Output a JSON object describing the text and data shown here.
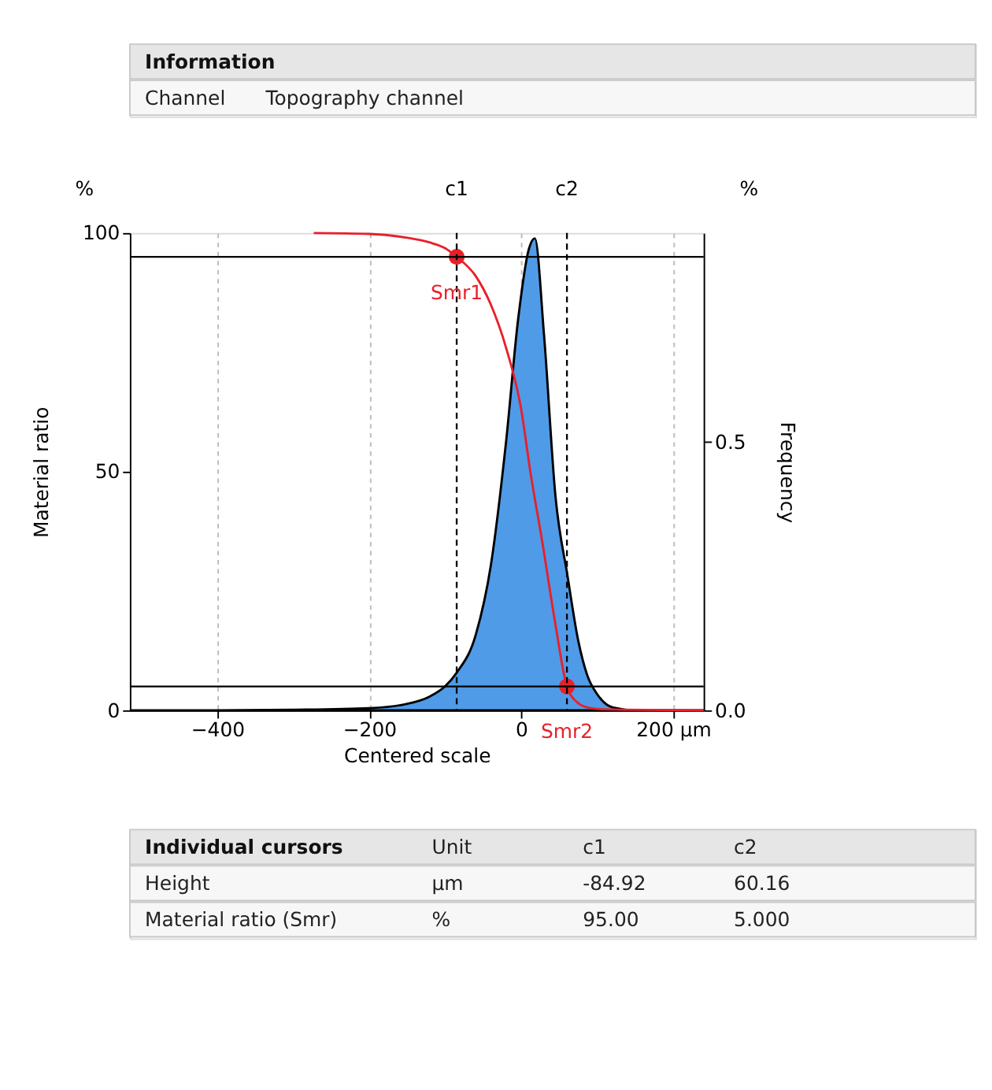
{
  "chart_data": [
    {
      "type": "other",
      "annotations": [
        "Information",
        "Channel",
        "Topography channel"
      ]
    },
    {
      "type": "line",
      "xlabel": "Centered scale",
      "ylabel": "Material ratio",
      "y2label": "Frequency",
      "xlim": [
        -515,
        240
      ],
      "xticks": [
        -400,
        -200,
        0,
        {
          "value": 200,
          "label": "200 µm"
        }
      ],
      "ylim": [
        0,
        100
      ],
      "yticks": [
        0,
        50,
        100
      ],
      "y2lim": [
        0,
        0.89
      ],
      "y2ticks": [
        {
          "value": 0,
          "label": "0.0"
        },
        0.5
      ],
      "grid": "x",
      "series": [
        {
          "type": "area",
          "axis": "y2",
          "color": "#4f9be8",
          "x": [
            -515,
            -400,
            -300,
            -200,
            -150,
            -120,
            -100,
            -85,
            -60,
            -40,
            -20,
            -4,
            10,
            18,
            30,
            45,
            61,
            75,
            87,
            100,
            121,
            150,
            240
          ],
          "values": [
            0,
            0,
            0.001,
            0.004,
            0.012,
            0.026,
            0.045,
            0.07,
            0.14,
            0.27,
            0.5,
            0.73,
            0.86,
            0.88,
            0.7,
            0.4,
            0.25,
            0.13,
            0.065,
            0.03,
            0.005,
            0,
            0
          ]
        },
        {
          "type": "line",
          "color": "#e8202a",
          "x": [
            -273,
            -200,
            -150,
            -120,
            -100,
            -84.92,
            -60,
            -40,
            -20,
            0,
            12,
            28,
            45,
            60.16,
            75,
            90,
            110,
            240
          ],
          "values": [
            100,
            99.8,
            99,
            98,
            96.8,
            95,
            91,
            85,
            76,
            63,
            50,
            35,
            18,
            5,
            1.5,
            0.5,
            0.2,
            0
          ]
        },
        {
          "type": "scatter",
          "color": "#e8202a",
          "marker": "circle",
          "x": [
            -84.92,
            60.16
          ],
          "values": [
            95,
            5
          ]
        }
      ],
      "ref_lines": [
        {
          "axis": "y",
          "value": 95,
          "color": "#000000",
          "line_style": "solid"
        },
        {
          "axis": "y",
          "value": 5,
          "color": "#000000",
          "line_style": "solid"
        },
        {
          "axis": "x",
          "value": -84.92,
          "label": "c1",
          "color": "#000000",
          "line_style": "dashed"
        },
        {
          "axis": "x",
          "value": 60.16,
          "label": "c2",
          "color": "#000000",
          "line_style": "dashed"
        }
      ],
      "annotations": [
        "%",
        "%",
        {
          "text": "Smr1",
          "x": -84.92,
          "y": 95
        },
        {
          "text": "Smr2",
          "x": 60.16,
          "y": 5
        }
      ]
    },
    {
      "type": "other",
      "annotations": [
        "Individual cursors",
        "Unit",
        "c1",
        "c2",
        "Height",
        "µm",
        "-84.92",
        "60.16",
        "Material ratio (Smr)",
        "%",
        "95.00",
        "5.000"
      ]
    }
  ]
}
